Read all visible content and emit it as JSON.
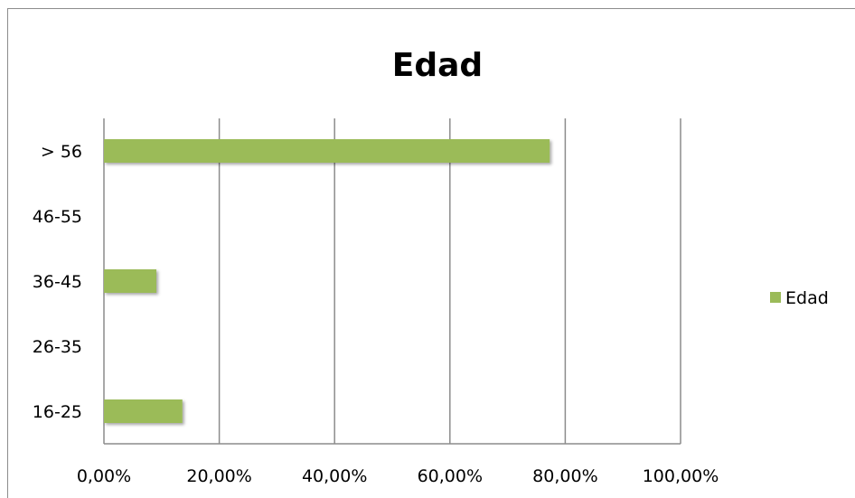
{
  "chart_data": {
    "type": "bar",
    "orientation": "horizontal",
    "title": "Edad",
    "categories": [
      "16-25",
      "26-35",
      "36-45",
      "46-55",
      "> 56"
    ],
    "series": [
      {
        "name": "Edad",
        "values": [
          0.136,
          0,
          0.0909,
          0,
          0.773
        ],
        "color": "#9bbb59"
      }
    ],
    "xlim": [
      0,
      1
    ],
    "x_ticks": [
      0,
      0.2,
      0.4,
      0.6,
      0.8,
      1.0
    ],
    "x_tick_labels": [
      "0,00%",
      "20,00%",
      "40,00%",
      "60,00%",
      "80,00%",
      "100,00%"
    ],
    "xlabel": "",
    "ylabel": "",
    "grid": "vertical",
    "legend": "right"
  }
}
